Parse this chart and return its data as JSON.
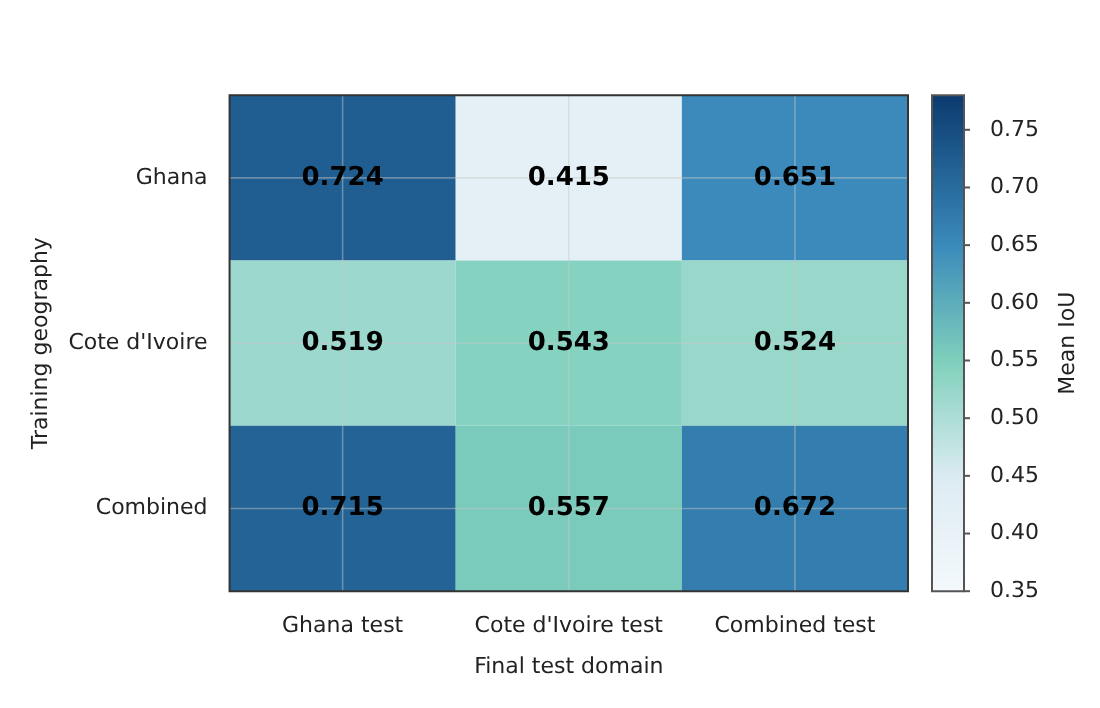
{
  "chart_data": {
    "type": "heatmap",
    "xlabel": "Final test domain",
    "ylabel": "Training geography",
    "clabel": "Mean IoU",
    "categories": [
      "Ghana test",
      "Cote d'Ivoire test",
      "Combined test"
    ],
    "y_categories": [
      "Ghana",
      "Cote d'Ivoire",
      "Combined"
    ],
    "cells": [
      [
        0.724,
        0.415,
        0.651
      ],
      [
        0.519,
        0.543,
        0.524
      ],
      [
        0.715,
        0.557,
        0.672
      ]
    ],
    "clim": [
      0.35,
      0.78
    ],
    "cticks": [
      0.35,
      {
        "value": 0.4,
        "label": "0.40"
      },
      0.45,
      {
        "value": 0.5,
        "label": "0.50"
      },
      0.55,
      {
        "value": 0.6,
        "label": "0.60"
      },
      0.65,
      {
        "value": 0.7,
        "label": "0.70"
      },
      0.75
    ],
    "data_labels": true,
    "grid": true
  }
}
